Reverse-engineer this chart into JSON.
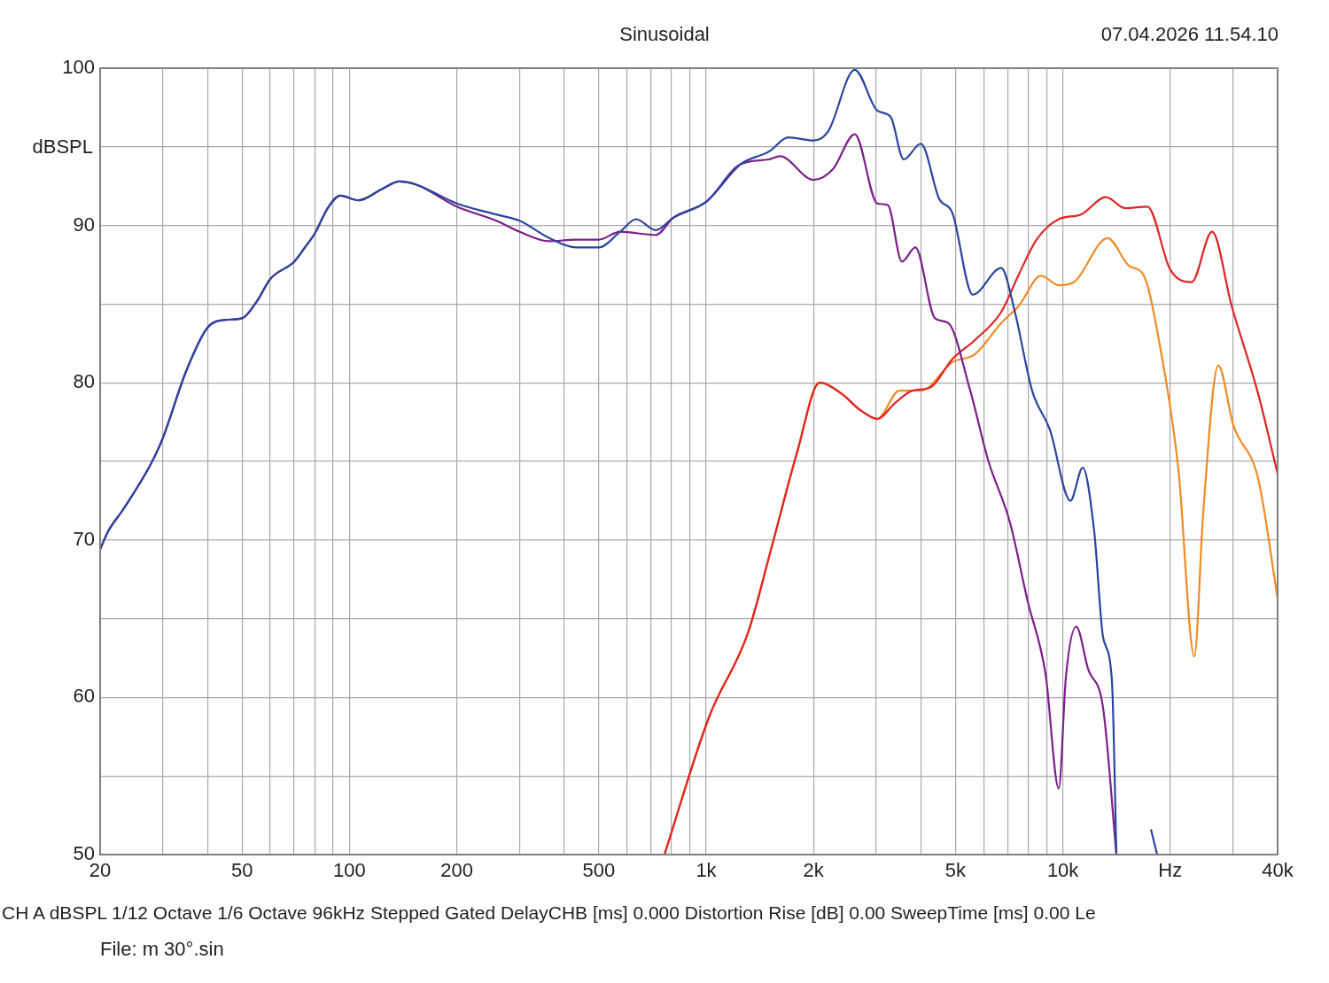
{
  "chart_data": {
    "type": "line",
    "title": "Sinusoidal",
    "ylabel": "dBSPL",
    "annotations": [
      "07.04.2026 11.54.10",
      "CH A   dBSPL   1/12 Octave   1/6 Octave   96kHz   Stepped   Gated   DelayCHB [ms] 0.000   Distortion Rise [dB] 0.00   SweepTime [ms] 0.00   Le",
      "File: m 30°.sin"
    ],
    "log": "x",
    "grid": true,
    "legend": false,
    "marker": "none",
    "line_style": "solid",
    "xlim": [
      20,
      40000
    ],
    "ylim": [
      50,
      100
    ],
    "xticks": [
      20,
      {
        "value": 30,
        "label": null
      },
      {
        "value": 40,
        "label": null
      },
      50,
      {
        "value": 60,
        "label": null
      },
      {
        "value": 70,
        "label": null
      },
      {
        "value": 80,
        "label": null
      },
      {
        "value": 90,
        "label": null
      },
      100,
      200,
      {
        "value": 300,
        "label": null
      },
      {
        "value": 400,
        "label": null
      },
      500,
      {
        "value": 600,
        "label": null
      },
      {
        "value": 700,
        "label": null
      },
      {
        "value": 800,
        "label": null
      },
      {
        "value": 900,
        "label": null
      },
      {
        "value": 1000,
        "label": "1k"
      },
      {
        "value": 2000,
        "label": "2k"
      },
      {
        "value": 3000,
        "label": null
      },
      {
        "value": 4000,
        "label": null
      },
      {
        "value": 5000,
        "label": "5k"
      },
      {
        "value": 6000,
        "label": null
      },
      {
        "value": 7000,
        "label": null
      },
      {
        "value": 8000,
        "label": null
      },
      {
        "value": 9000,
        "label": null
      },
      {
        "value": 10000,
        "label": "10k"
      },
      {
        "value": 20000,
        "label": "Hz"
      },
      {
        "value": 30000,
        "label": null
      },
      {
        "value": 40000,
        "label": "40k"
      }
    ],
    "yticks": [
      50,
      {
        "value": 55,
        "label": null
      },
      60,
      {
        "value": 65,
        "label": null
      },
      70,
      {
        "value": 75,
        "label": null
      },
      80,
      {
        "value": 85,
        "label": null
      },
      90,
      {
        "value": 95,
        "label": null
      },
      100
    ],
    "series": [
      {
        "color": "#2a45a0",
        "x": [
          20,
          21,
          23.3,
          27.7,
          30,
          34.8,
          40,
          45.1,
          50,
          55.1,
          60,
          70,
          75,
          80,
          86.9,
          94.2,
          106,
          123,
          138,
          154,
          200,
          258,
          300,
          363,
          431,
          500,
          574,
          636,
          722,
          810,
          1000,
          1250,
          1500,
          1700,
          2000,
          2200,
          2610,
          3020,
          3290,
          3580,
          4000,
          4500,
          4900,
          5590,
          6720,
          7320,
          8200,
          9200,
          10500,
          11370,
          12250,
          12970,
          13730,
          14130,
          16970,
          17660,
          18380
        ],
        "values": [
          69.4,
          70.5,
          72,
          74.8,
          76.5,
          80.7,
          83.5,
          84,
          84.1,
          85.2,
          86.6,
          87.7,
          88.6,
          89.5,
          91.1,
          91.9,
          91.6,
          92.3,
          92.8,
          92.6,
          91.4,
          90.7,
          90.3,
          89.2,
          88.6,
          88.6,
          89.6,
          90.4,
          89.7,
          90.5,
          91.5,
          93.9,
          94.7,
          95.6,
          95.4,
          96,
          99.9,
          97.3,
          96.9,
          94.2,
          95.2,
          91.7,
          90.8,
          85.6,
          87.3,
          84.6,
          79.5,
          77,
          72.5,
          74.6,
          70.5,
          63.8,
          61,
          50,
          null,
          51.6,
          50
        ]
      },
      {
        "color": "#7a2088",
        "x": [
          20,
          21,
          23.3,
          27.7,
          30,
          34.8,
          40,
          45.1,
          50,
          55.1,
          60,
          70,
          75,
          80,
          86.9,
          94.2,
          106,
          123,
          138,
          154,
          200,
          258,
          300,
          363,
          431,
          500,
          574,
          722,
          810,
          1000,
          1250,
          1500,
          1610,
          2000,
          2270,
          2610,
          3020,
          3230,
          3540,
          3860,
          4380,
          4770,
          5500,
          6170,
          7110,
          7970,
          8940,
          9740,
          10200,
          10900,
          11770,
          12970,
          14130
        ],
        "values": [
          69.4,
          70.5,
          72,
          74.8,
          76.5,
          80.7,
          83.5,
          84,
          84.1,
          85.2,
          86.6,
          87.7,
          88.6,
          89.5,
          91.1,
          91.9,
          91.6,
          92.3,
          92.8,
          92.6,
          91.2,
          90.3,
          89.6,
          89,
          89.1,
          89.1,
          89.6,
          89.4,
          90.5,
          91.5,
          93.9,
          94.2,
          94.4,
          92.9,
          93.6,
          95.8,
          91.4,
          91.3,
          87.7,
          88.6,
          84.1,
          83.8,
          79.5,
          75.1,
          71.1,
          66.1,
          61.5,
          54.2,
          61.3,
          64.5,
          61.8,
          59.3,
          50
        ]
      },
      {
        "color": "#e02424",
        "x": [
          764,
          1017,
          1310,
          1520,
          1800,
          2080,
          2400,
          2690,
          3020,
          3380,
          3790,
          4250,
          4900,
          5660,
          6720,
          7530,
          8440,
          9740,
          11240,
          13200,
          14960,
          17260,
          20000,
          22970,
          26200,
          29720,
          35280,
          40000
        ],
        "values": [
          50,
          58.7,
          64.1,
          69.4,
          75.6,
          80,
          79.3,
          78.3,
          77.7,
          78.7,
          79.5,
          79.7,
          81.5,
          82.7,
          84.5,
          86.9,
          89.1,
          90.4,
          90.7,
          91.8,
          91.1,
          91.2,
          87.2,
          86.4,
          89.6,
          84.9,
          79.3,
          74.2
        ]
      },
      {
        "color": "#f08a24",
        "x": [
          764,
          1017,
          1310,
          1520,
          1800,
          2080,
          2400,
          2690,
          3020,
          3480,
          4010,
          4900,
          5660,
          6720,
          7530,
          8690,
          9740,
          10740,
          13350,
          15390,
          16780,
          18800,
          21080,
          23370,
          24740,
          27270,
          30060,
          35280,
          40000
        ],
        "values": [
          50,
          58.7,
          64.1,
          69.4,
          75.6,
          80,
          79.3,
          78.3,
          77.7,
          79.5,
          79.5,
          81.3,
          81.8,
          83.8,
          84.9,
          86.8,
          86.2,
          86.4,
          89.2,
          87.4,
          86.9,
          82.1,
          74.5,
          62.6,
          71.7,
          81.1,
          77.3,
          73.9,
          66.3
        ]
      }
    ]
  }
}
